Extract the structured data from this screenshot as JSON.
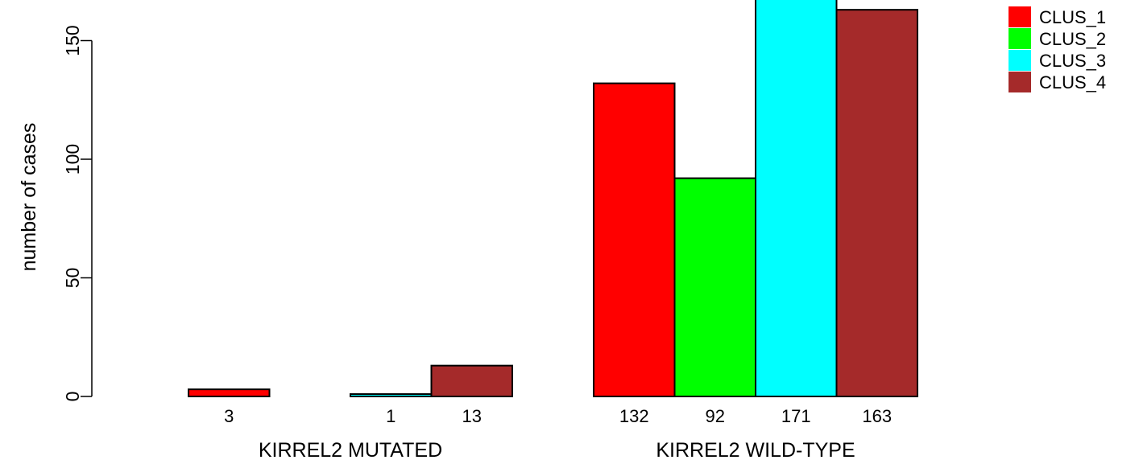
{
  "chart_data": {
    "type": "bar",
    "title": "",
    "ylabel": "number of cases",
    "ylim": [
      0,
      171
    ],
    "yticks": [
      0,
      50,
      100,
      150
    ],
    "grid": false,
    "legend_position": "top-right",
    "groups": [
      {
        "label": "KIRREL2 MUTATED",
        "bar_labels": [
          "3",
          "",
          "1",
          "13"
        ]
      },
      {
        "label": "KIRREL2 WILD-TYPE",
        "bar_labels": [
          "132",
          "92",
          "171",
          "163"
        ]
      }
    ],
    "series": [
      {
        "name": "CLUS_1",
        "color": "#ff0000",
        "values": [
          3,
          132
        ]
      },
      {
        "name": "CLUS_2",
        "color": "#00ff00",
        "values": [
          0,
          92
        ]
      },
      {
        "name": "CLUS_3",
        "color": "#00ffff",
        "values": [
          1,
          171
        ]
      },
      {
        "name": "CLUS_4",
        "color": "#a52a2a",
        "values": [
          13,
          163
        ]
      }
    ]
  }
}
